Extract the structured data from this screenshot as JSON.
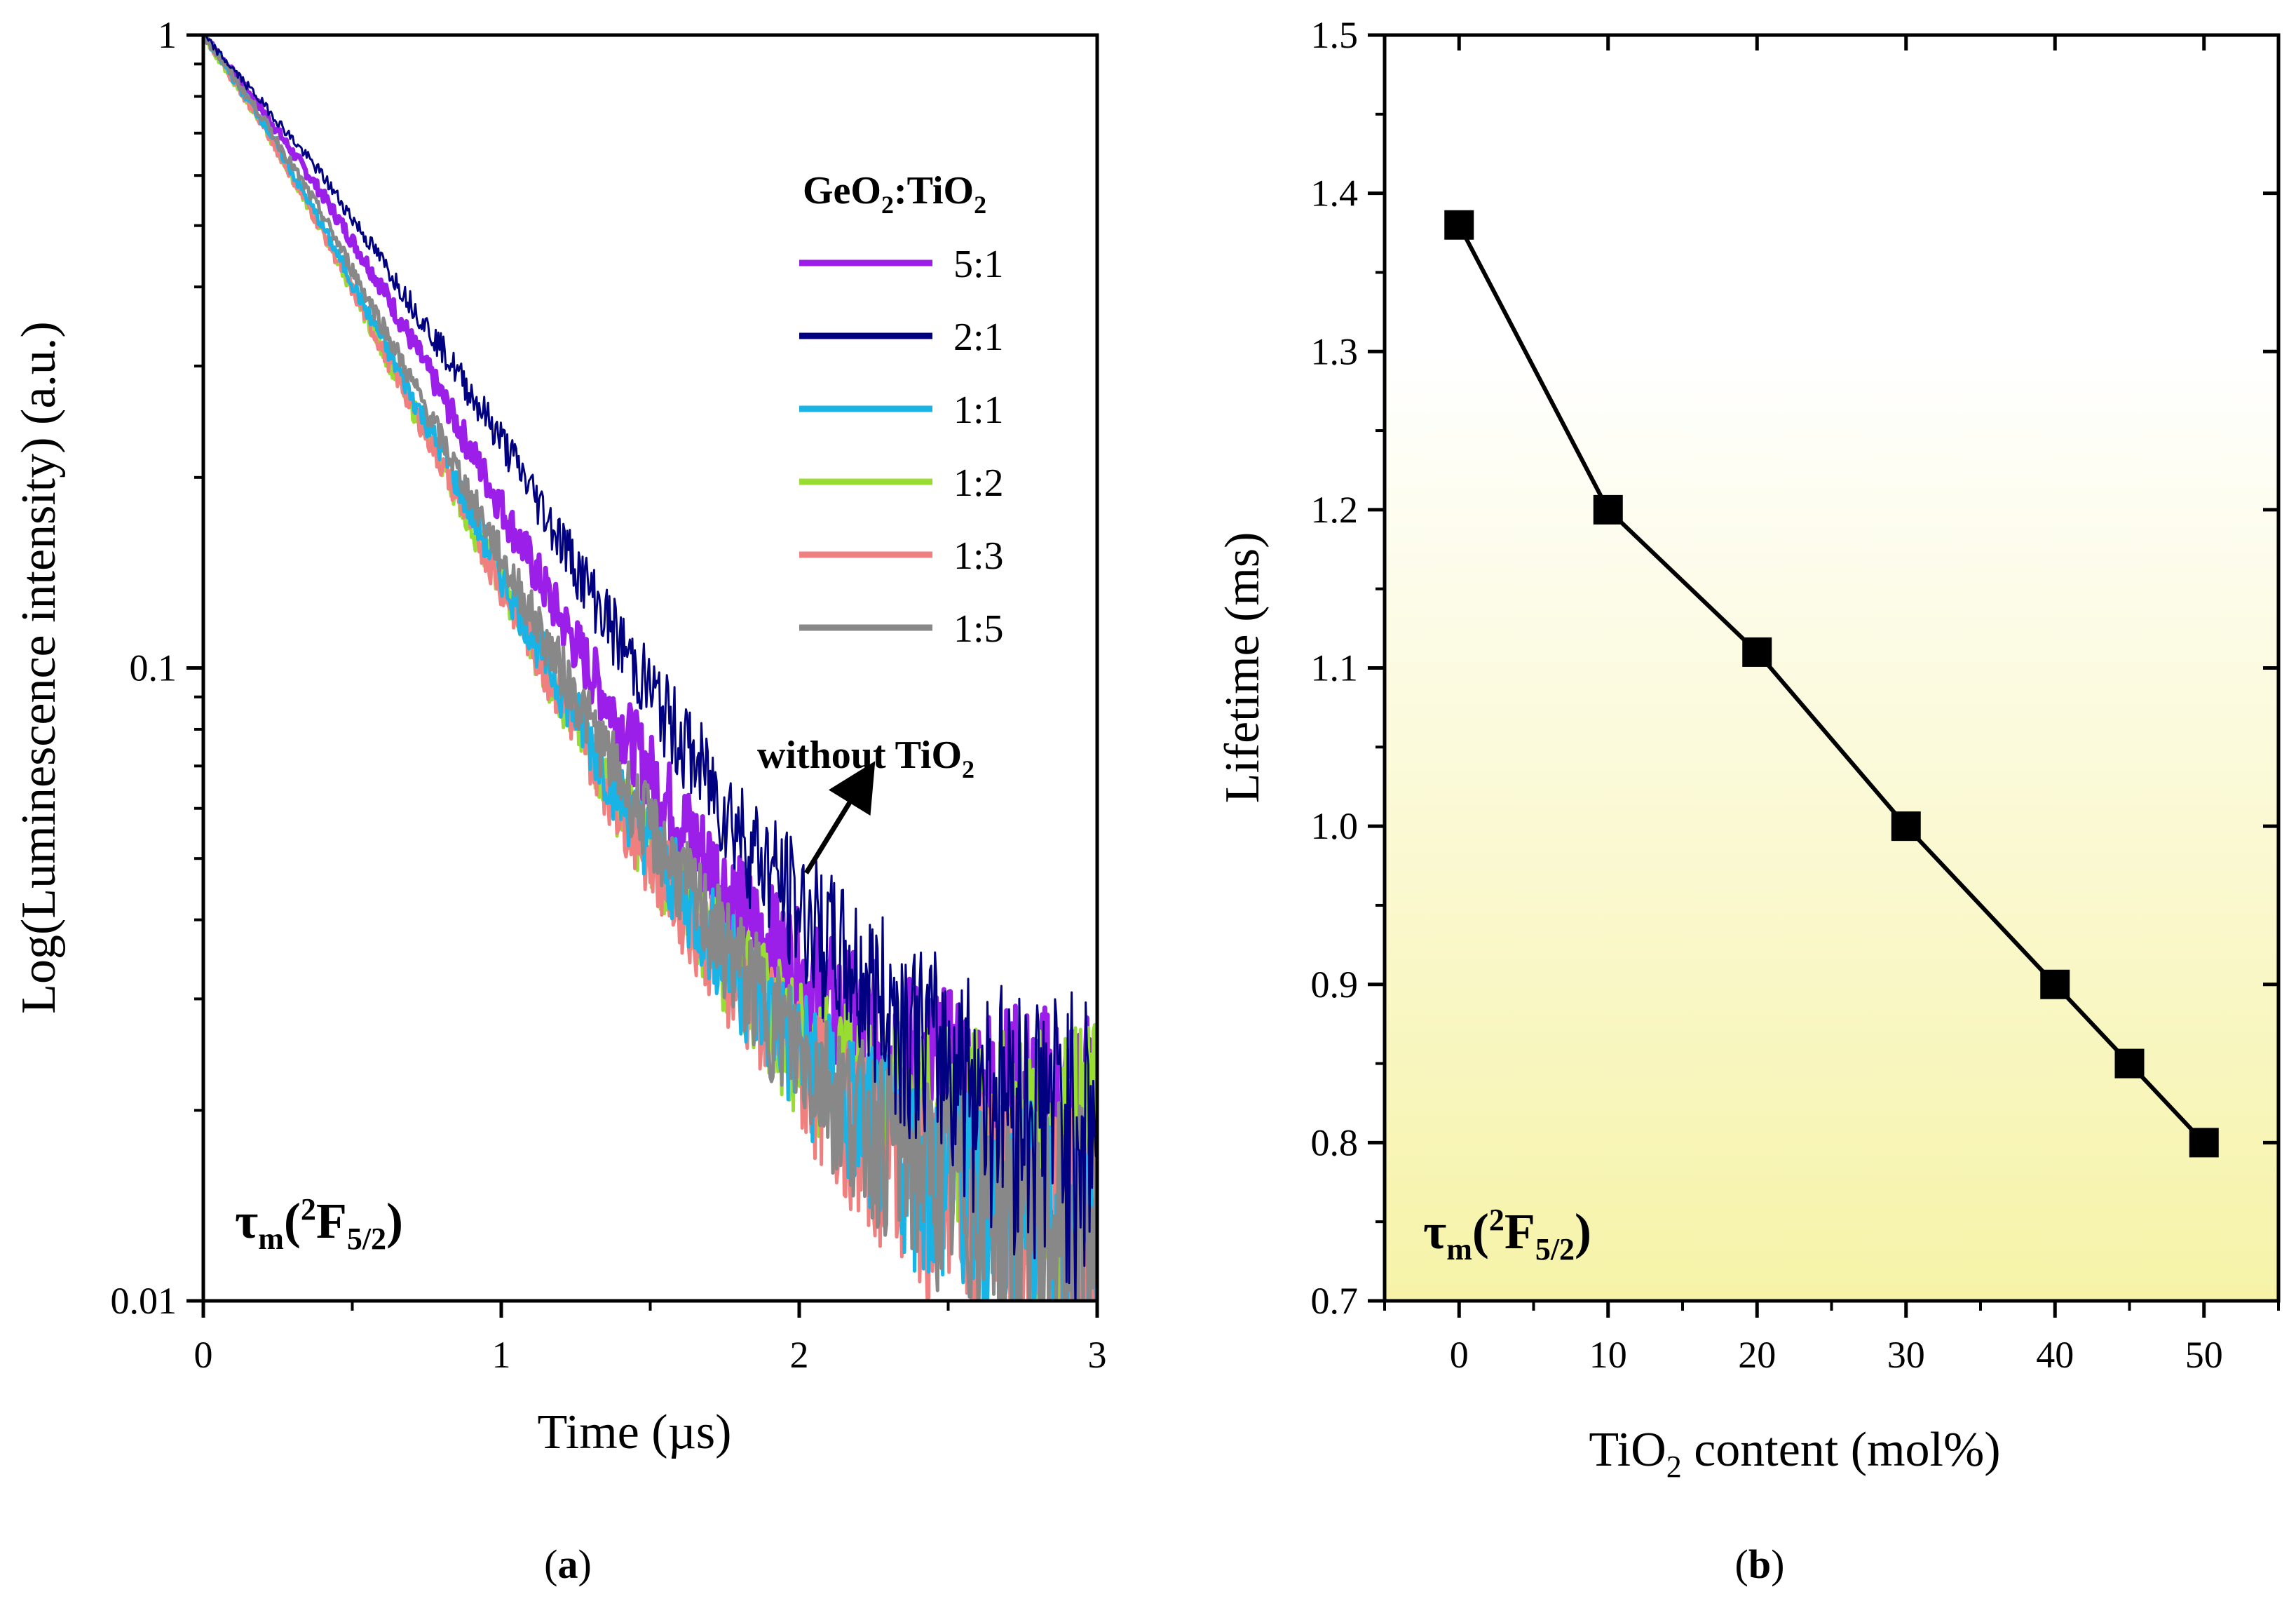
{
  "chart_data": [
    {
      "panel": "a",
      "type": "line",
      "xlabel": "Time (µs)",
      "ylabel": "Log(Luminescence intensity) (a.u.)",
      "xlim": [
        0,
        3
      ],
      "ylim": [
        0.01,
        1
      ],
      "yscale": "log",
      "x_ticks": [
        "0",
        "1",
        "2",
        "3"
      ],
      "y_ticks": [
        "0.01",
        "0.1",
        "1"
      ],
      "legend_title": "GeO₂:TiO₂",
      "legend_position": "top-right",
      "annotation": "without TiO₂",
      "inset_label": "τm(²F5/2)",
      "series": [
        {
          "name": "5:1",
          "color": "#9b1fe8",
          "x": [
            0,
            0.2,
            0.4,
            0.6,
            0.8,
            1.0,
            1.2,
            1.4,
            1.6,
            1.8,
            2.0,
            2.2,
            2.4,
            2.6,
            2.8,
            3.0
          ],
          "y": [
            1.0,
            0.76,
            0.56,
            0.4,
            0.27,
            0.18,
            0.12,
            0.082,
            0.058,
            0.042,
            0.033,
            0.027,
            0.024,
            0.021,
            0.02,
            0.019
          ]
        },
        {
          "name": "2:1",
          "color": "#000080",
          "x": [
            0,
            0.2,
            0.4,
            0.6,
            0.8,
            1.0,
            1.2,
            1.4,
            1.6,
            1.8,
            2.0,
            2.2,
            2.4,
            2.6,
            2.8,
            3.0
          ],
          "y": [
            1.0,
            0.78,
            0.6,
            0.44,
            0.32,
            0.23,
            0.16,
            0.11,
            0.078,
            0.056,
            0.042,
            0.033,
            0.027,
            0.023,
            0.021,
            0.02
          ]
        },
        {
          "name": "1:1",
          "color": "#1ab3e6",
          "x": [
            0,
            0.2,
            0.4,
            0.6,
            0.8,
            1.0,
            1.2,
            1.4,
            1.6,
            1.8,
            2.0,
            2.2,
            2.4,
            2.6,
            2.8,
            3.0
          ],
          "y": [
            1.0,
            0.73,
            0.5,
            0.33,
            0.22,
            0.14,
            0.093,
            0.063,
            0.045,
            0.033,
            0.025,
            0.02,
            0.017,
            0.015,
            0.014,
            0.013
          ]
        },
        {
          "name": "1:2",
          "color": "#99dd33",
          "x": [
            0,
            0.2,
            0.4,
            0.6,
            0.8,
            1.0,
            1.2,
            1.4,
            1.6,
            1.8,
            2.0,
            2.2,
            2.4,
            2.6,
            2.8,
            3.0
          ],
          "y": [
            1.0,
            0.72,
            0.49,
            0.32,
            0.21,
            0.135,
            0.09,
            0.061,
            0.044,
            0.033,
            0.026,
            0.022,
            0.02,
            0.019,
            0.018,
            0.018
          ]
        },
        {
          "name": "1:3",
          "color": "#f08080",
          "x": [
            0,
            0.2,
            0.4,
            0.6,
            0.8,
            1.0,
            1.2,
            1.4,
            1.6,
            1.8,
            2.0,
            2.2,
            2.4,
            2.6,
            2.8,
            3.0
          ],
          "y": [
            1.0,
            0.72,
            0.49,
            0.32,
            0.21,
            0.135,
            0.09,
            0.06,
            0.043,
            0.032,
            0.024,
            0.019,
            0.016,
            0.015,
            0.014,
            0.013
          ]
        },
        {
          "name": "1:5",
          "color": "#888888",
          "x": [
            0,
            0.2,
            0.4,
            0.6,
            0.8,
            1.0,
            1.2,
            1.4,
            1.6,
            1.8,
            2.0,
            2.2,
            2.4,
            2.6,
            2.8,
            3.0
          ],
          "y": [
            1.0,
            0.74,
            0.52,
            0.35,
            0.23,
            0.15,
            0.1,
            0.067,
            0.047,
            0.034,
            0.025,
            0.02,
            0.017,
            0.015,
            0.014,
            0.013
          ]
        }
      ]
    },
    {
      "panel": "b",
      "type": "line",
      "xlabel": "TiO₂ content (mol%)",
      "ylabel": "Lifetime (ms)",
      "xlim": [
        -5,
        55
      ],
      "ylim": [
        0.7,
        1.5
      ],
      "x_ticks": [
        "0",
        "10",
        "20",
        "30",
        "40",
        "50"
      ],
      "y_ticks": [
        "0.7",
        "0.8",
        "0.9",
        "1.0",
        "1.1",
        "1.2",
        "1.3",
        "1.4",
        "1.5"
      ],
      "inset_label": "τm(²F5/2)",
      "background_gradient": [
        "#ffffff",
        "#f6f3a8"
      ],
      "series": [
        {
          "color": "#000000",
          "x": [
            0,
            10,
            20,
            30,
            40,
            45,
            50
          ],
          "y": [
            1.38,
            1.2,
            1.11,
            1.0,
            0.9,
            0.85,
            0.8
          ]
        }
      ]
    }
  ],
  "labels": {
    "panel_a": "(a)",
    "panel_b": "(b)"
  }
}
